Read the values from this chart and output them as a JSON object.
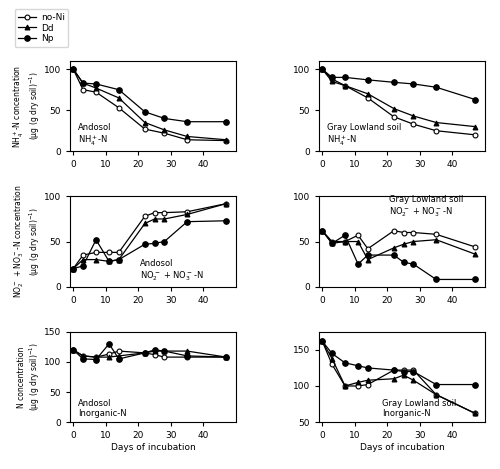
{
  "andosol_nh4_noni": {
    "x": [
      0,
      3,
      7,
      14,
      22,
      28,
      35,
      47
    ],
    "y": [
      100,
      75,
      72,
      53,
      27,
      22,
      14,
      13
    ]
  },
  "andosol_nh4_dd": {
    "x": [
      0,
      3,
      7,
      14,
      22,
      28,
      35,
      47
    ],
    "y": [
      100,
      83,
      77,
      65,
      35,
      26,
      18,
      14
    ]
  },
  "andosol_nh4_np": {
    "x": [
      0,
      3,
      7,
      14,
      22,
      28,
      35,
      47
    ],
    "y": [
      100,
      83,
      82,
      75,
      48,
      40,
      36,
      36
    ]
  },
  "gray_nh4_noni": {
    "x": [
      0,
      3,
      7,
      14,
      22,
      28,
      35,
      47
    ],
    "y": [
      100,
      88,
      80,
      65,
      42,
      33,
      25,
      20
    ]
  },
  "gray_nh4_dd": {
    "x": [
      0,
      3,
      7,
      14,
      22,
      28,
      35,
      47
    ],
    "y": [
      100,
      85,
      80,
      70,
      52,
      43,
      35,
      30
    ]
  },
  "gray_nh4_np": {
    "x": [
      0,
      3,
      7,
      14,
      22,
      28,
      35,
      47
    ],
    "y": [
      100,
      90,
      90,
      87,
      84,
      82,
      78,
      63
    ]
  },
  "andosol_no3_noni": {
    "x": [
      0,
      3,
      7,
      11,
      14,
      22,
      25,
      28,
      35,
      47
    ],
    "y": [
      20,
      35,
      38,
      38,
      38,
      78,
      82,
      82,
      83,
      92
    ]
  },
  "andosol_no3_dd": {
    "x": [
      0,
      3,
      7,
      11,
      14,
      22,
      25,
      28,
      35,
      47
    ],
    "y": [
      20,
      30,
      30,
      28,
      30,
      70,
      75,
      75,
      80,
      92
    ]
  },
  "andosol_no3_np": {
    "x": [
      0,
      3,
      7,
      11,
      14,
      22,
      25,
      28,
      35,
      47
    ],
    "y": [
      20,
      23,
      52,
      28,
      30,
      47,
      48,
      50,
      72,
      73
    ]
  },
  "gray_no3_noni": {
    "x": [
      0,
      3,
      7,
      11,
      14,
      22,
      25,
      28,
      35,
      47
    ],
    "y": [
      62,
      50,
      50,
      57,
      42,
      62,
      60,
      60,
      58,
      44
    ]
  },
  "gray_no3_dd": {
    "x": [
      0,
      3,
      7,
      11,
      14,
      22,
      25,
      28,
      35,
      47
    ],
    "y": [
      62,
      48,
      50,
      50,
      30,
      43,
      47,
      50,
      52,
      36
    ]
  },
  "gray_no3_np": {
    "x": [
      0,
      3,
      7,
      11,
      14,
      22,
      25,
      28,
      35,
      47
    ],
    "y": [
      62,
      48,
      57,
      25,
      35,
      35,
      27,
      25,
      8,
      8
    ]
  },
  "andosol_tin_noni": {
    "x": [
      0,
      3,
      7,
      11,
      14,
      22,
      25,
      28,
      35,
      47
    ],
    "y": [
      120,
      110,
      108,
      113,
      118,
      115,
      112,
      108,
      108,
      108
    ]
  },
  "andosol_tin_dd": {
    "x": [
      0,
      3,
      7,
      11,
      14,
      22,
      25,
      28,
      35,
      47
    ],
    "y": [
      120,
      110,
      108,
      108,
      110,
      115,
      118,
      118,
      118,
      108
    ]
  },
  "andosol_tin_np": {
    "x": [
      0,
      3,
      7,
      11,
      14,
      22,
      25,
      28,
      35,
      47
    ],
    "y": [
      120,
      105,
      104,
      130,
      105,
      115,
      120,
      118,
      110,
      108
    ]
  },
  "gray_tin_noni": {
    "x": [
      0,
      3,
      7,
      11,
      14,
      22,
      25,
      28,
      35,
      47
    ],
    "y": [
      162,
      130,
      100,
      100,
      102,
      122,
      122,
      122,
      88,
      62
    ]
  },
  "gray_tin_dd": {
    "x": [
      0,
      3,
      7,
      11,
      14,
      22,
      25,
      28,
      35,
      47
    ],
    "y": [
      162,
      138,
      100,
      105,
      108,
      110,
      115,
      108,
      88,
      62
    ]
  },
  "gray_tin_np": {
    "x": [
      0,
      3,
      7,
      11,
      14,
      22,
      25,
      28,
      35,
      47
    ],
    "y": [
      162,
      145,
      132,
      128,
      125,
      122,
      120,
      120,
      102,
      102
    ]
  },
  "ylabels": {
    "nh4": "NH$_4^+$-N concentration\n(μg (g dry soil)$^{-1}$)",
    "no3": "NO$_2^-$ + NO$_3^-$-N concentration\n(μg (g dry soil)$^{-1}$)",
    "tin": "N concentration\n(μg (g dry soil)$^{-1}$)"
  },
  "xlabel": "Days of incubation",
  "subplot_labels": {
    "andosol_nh4": "Andosol\nNH$_4^+$-N",
    "gray_nh4": "Gray Lowland soil\nNH$_4^+$-N",
    "andosol_no3": "Andosol\nNO$_2^-$ + NO$_3^-$-N",
    "gray_no3": "Gray Lowland soil\nNO$_2^-$ + NO$_3^-$-N",
    "andosol_tin": "Andosol\nInorganic-N",
    "gray_tin": "Gray Lowland soil\nInorganic-N"
  }
}
